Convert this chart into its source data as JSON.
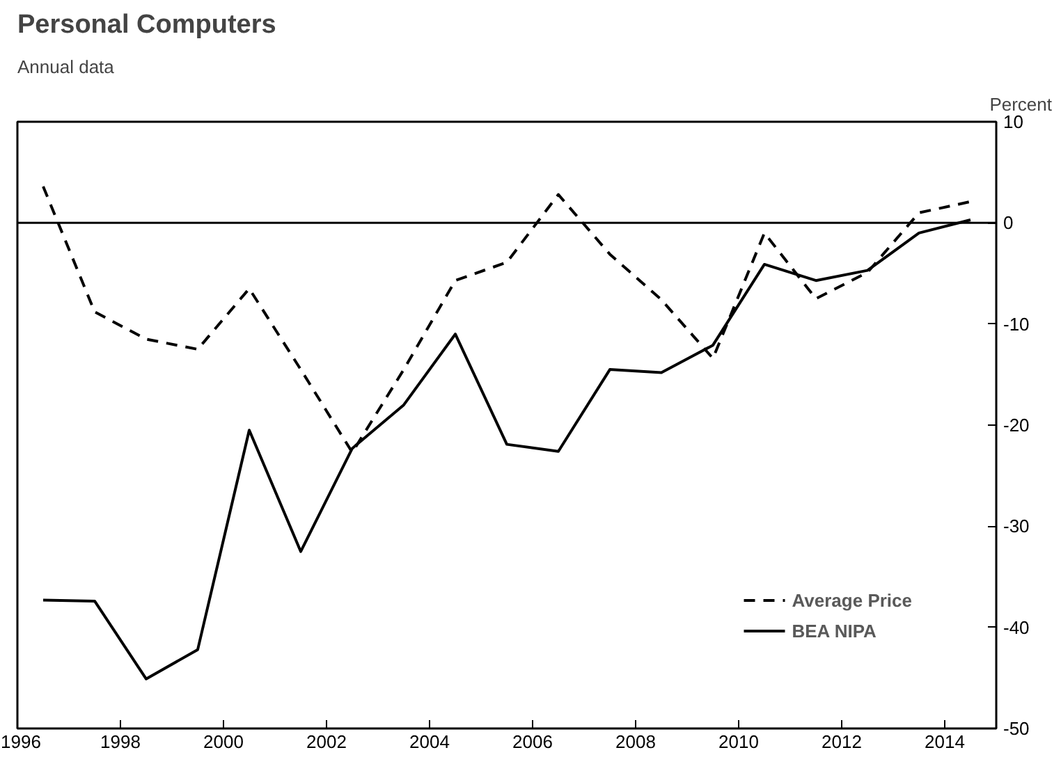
{
  "chart_data": {
    "type": "line",
    "title": "Personal Computers",
    "subtitle": "Annual data",
    "ylabel": "Percent",
    "x": [
      1996.5,
      1997.5,
      1998.5,
      1999.5,
      2000.5,
      2001.5,
      2002.5,
      2003.5,
      2004.5,
      2005.5,
      2006.5,
      2007.5,
      2008.5,
      2009.5,
      2010.5,
      2011.5,
      2012.5,
      2013.5,
      2014.5
    ],
    "series": [
      {
        "name": "Average Price",
        "color": "#000000",
        "line_style": "dashed",
        "values": [
          3.6,
          -8.8,
          -11.5,
          -12.5,
          -6.5,
          -14.5,
          -22.7,
          -14.5,
          -5.7,
          -3.9,
          2.8,
          -3.1,
          -7.6,
          -13.4,
          -1.0,
          -7.5,
          -4.9,
          1.0,
          2.1
        ]
      },
      {
        "name": "BEA NIPA",
        "color": "#000000",
        "line_style": "solid",
        "values": [
          -37.3,
          -37.4,
          -45.1,
          -42.2,
          -20.5,
          -32.5,
          -22.3,
          -18.0,
          -11.0,
          -21.9,
          -22.6,
          -14.5,
          -14.8,
          -12.1,
          -4.1,
          -5.7,
          -4.7,
          -1.0,
          0.3
        ]
      }
    ],
    "xlim": [
      1996,
      2015
    ],
    "xticks": [
      1996,
      1998,
      2000,
      2002,
      2004,
      2006,
      2008,
      2010,
      2012,
      2014
    ],
    "ylim": [
      -50,
      10
    ],
    "yticks": [
      -50,
      -40,
      -30,
      -20,
      -10,
      0,
      10
    ],
    "ref_lines": [
      {
        "axis": "y",
        "value": 0,
        "color": "#000000",
        "line_style": "solid"
      }
    ],
    "grid": false,
    "legend": "bottom right",
    "marker": "none"
  }
}
